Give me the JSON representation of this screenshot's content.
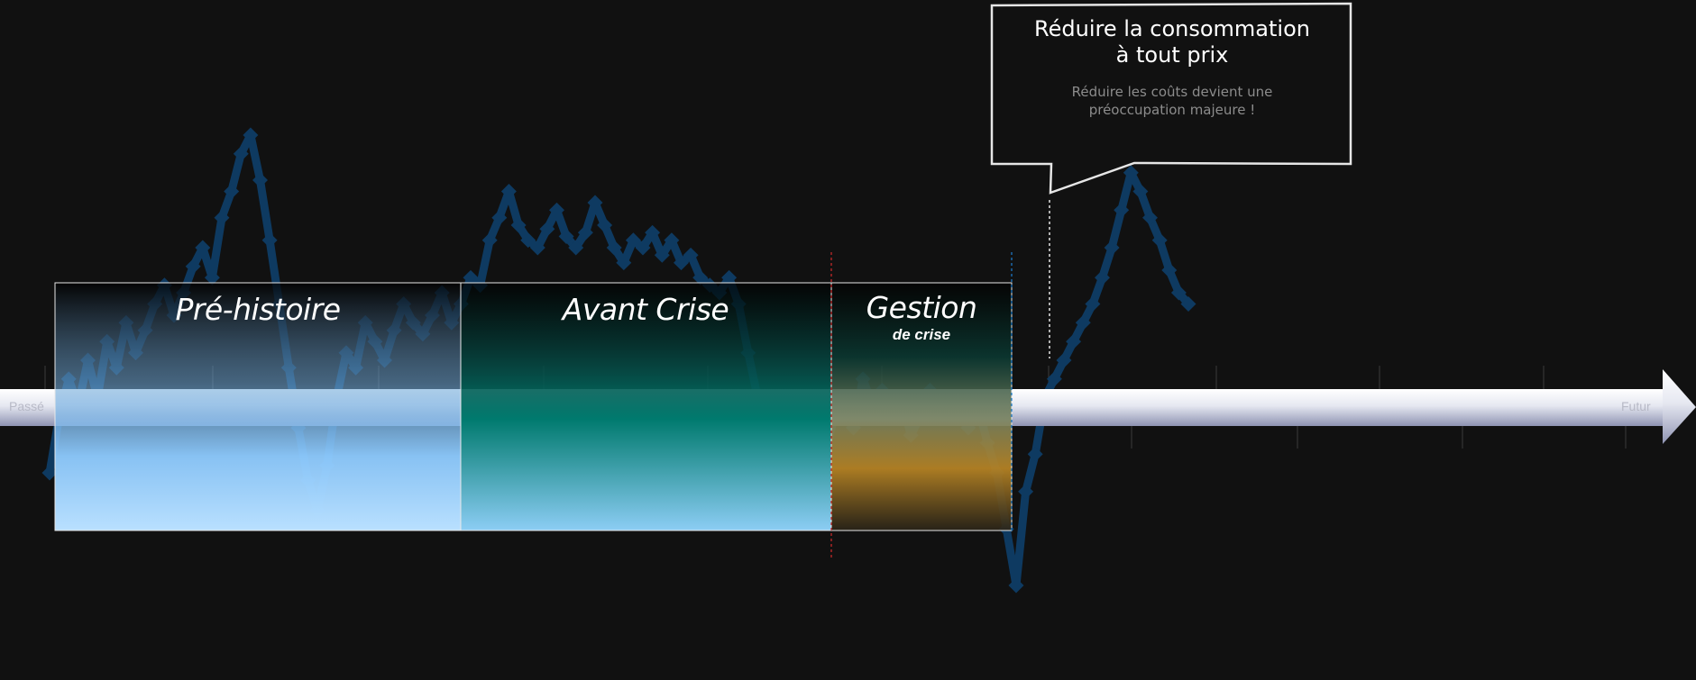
{
  "axis": {
    "start_label": "Passé",
    "end_label": "Futur"
  },
  "phases": [
    {
      "title": "Pré-histoire",
      "subtitle": ""
    },
    {
      "title": "Avant Crise",
      "subtitle": ""
    },
    {
      "title": "Gestion",
      "subtitle": "de crise"
    }
  ],
  "callout": {
    "title_line1": "Réduire la consommation",
    "title_line2": "à tout prix",
    "text_line1": "Réduire les coûts devient une",
    "text_line2": "préoccupation majeure !"
  },
  "colors": {
    "background": "#111111",
    "series": "#0e3a61",
    "prehistory_fill": "#8ecbff",
    "precrisis_fill": "#007a6e",
    "crisis_fill": "#c8891a",
    "crisis_marker": "#d12a2a",
    "now_marker": "#1f7fd0",
    "arrow": "#e9ebf4"
  },
  "signal": {
    "values": [
      0.1,
      0.25,
      0.35,
      0.28,
      0.4,
      0.3,
      0.45,
      0.38,
      0.5,
      0.42,
      0.48,
      0.55,
      0.6,
      0.52,
      0.58,
      0.65,
      0.7,
      0.62,
      0.78,
      0.85,
      0.95,
      1.0,
      0.88,
      0.72,
      0.55,
      0.38,
      0.22,
      0.08,
      0.0,
      0.12,
      0.3,
      0.42,
      0.38,
      0.5,
      0.45,
      0.4,
      0.48,
      0.55,
      0.5,
      0.47,
      0.52,
      0.58,
      0.5,
      0.55,
      0.62,
      0.6,
      0.72,
      0.78,
      0.85,
      0.76,
      0.72,
      0.7,
      0.75,
      0.8,
      0.73,
      0.7,
      0.74,
      0.82,
      0.76,
      0.7,
      0.66,
      0.72,
      0.7,
      0.74,
      0.68,
      0.72,
      0.66,
      0.68,
      0.62,
      0.6,
      0.58,
      0.62,
      0.55,
      0.42,
      0.3,
      0.2,
      0.12,
      0.05,
      0.08,
      0.0,
      0.06,
      0.15,
      0.25,
      0.3,
      0.22,
      0.35,
      0.28,
      0.32,
      0.25,
      0.3,
      0.2,
      0.25,
      0.32,
      0.28,
      0.25,
      0.3,
      0.22,
      0.28,
      0.18,
      0.1,
      -0.05,
      -0.2,
      0.05,
      0.15,
      0.3,
      0.35,
      0.4,
      0.45,
      0.5,
      0.55,
      0.62,
      0.7,
      0.8,
      0.9,
      0.85,
      0.78,
      0.72,
      0.64,
      0.58,
      0.55
    ]
  }
}
